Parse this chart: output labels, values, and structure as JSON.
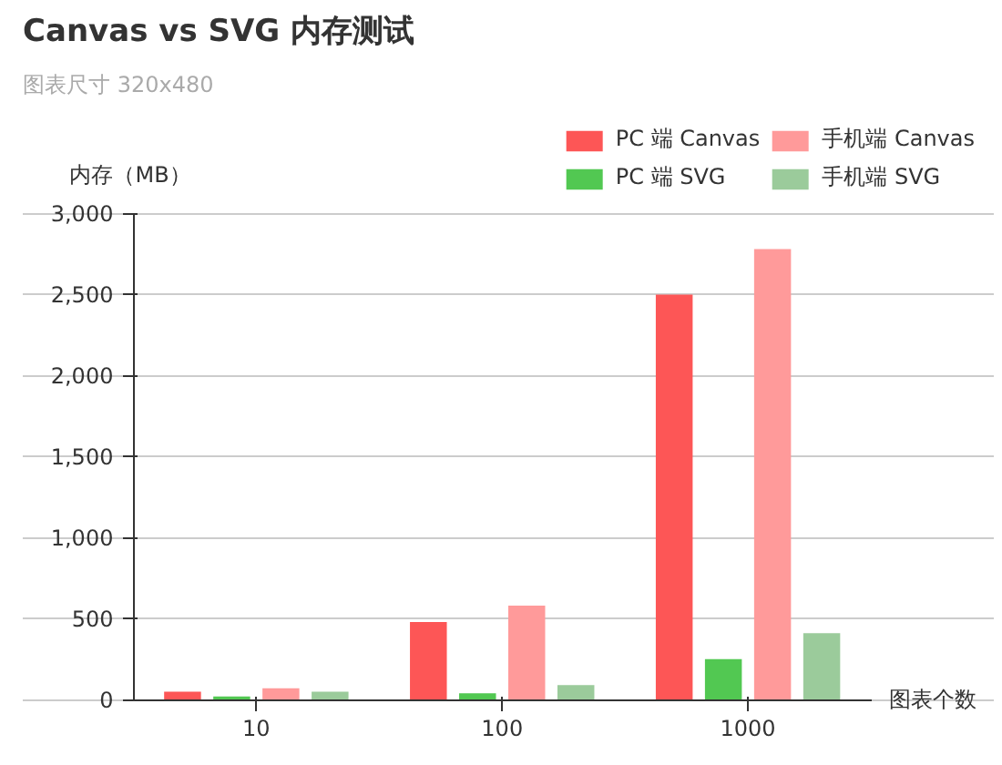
{
  "chart_data": {
    "type": "bar",
    "title": "Canvas vs SVG 内存测试",
    "subtitle": "图表尺寸 320x480",
    "xlabel": "图表个数",
    "ylabel": "内存（MB）",
    "categories": [
      "10",
      "100",
      "1000"
    ],
    "series": [
      {
        "name": "PC 端 Canvas",
        "color": "#fd5656",
        "values": [
          50,
          480,
          2500
        ]
      },
      {
        "name": "PC 端 SVG",
        "color": "#52c852",
        "values": [
          20,
          40,
          250
        ]
      },
      {
        "name": "手机端 Canvas",
        "color": "#ff9a9a",
        "values": [
          70,
          580,
          2780
        ]
      },
      {
        "name": "手机端 SVG",
        "color": "#9bcb9b",
        "values": [
          50,
          90,
          410
        ]
      }
    ],
    "ylim": [
      0,
      3000
    ],
    "yticks": [
      {
        "value": 0,
        "label": "0"
      },
      {
        "value": 500,
        "label": "500"
      },
      {
        "value": 1000,
        "label": "1,000"
      },
      {
        "value": 1500,
        "label": "1,500"
      },
      {
        "value": 2000,
        "label": "2,000"
      },
      {
        "value": 2500,
        "label": "2,500"
      },
      {
        "value": 3000,
        "label": "3,000"
      }
    ],
    "grid": "y",
    "legend": "top right"
  }
}
